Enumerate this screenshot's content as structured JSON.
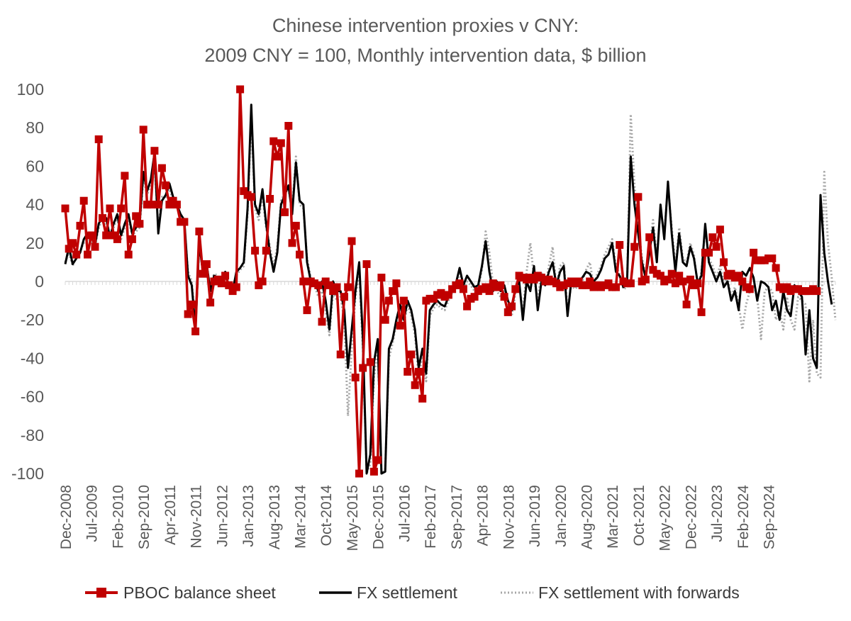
{
  "chart_data": {
    "type": "line",
    "title": "Chinese intervention proxies v CNY:",
    "subtitle": "2009 CNY = 100, Monthly intervention data, $ billion",
    "xlabel": "",
    "ylabel": "",
    "ylim": [
      -100,
      100
    ],
    "yticks": [
      100,
      80,
      60,
      40,
      20,
      0,
      -20,
      -40,
      -60,
      -80,
      -100
    ],
    "start_month": "2008-12",
    "x_tick_labels": [
      "Dec-2008",
      "Jul-2009",
      "Feb-2010",
      "Sep-2010",
      "Apr-2011",
      "Nov-2011",
      "Jun-2012",
      "Jan-2013",
      "Aug-2013",
      "Mar-2014",
      "Oct-2014",
      "May-2015",
      "Dec-2015",
      "Jul-2016",
      "Feb-2017",
      "Sep-2017",
      "Apr-2018",
      "Nov-2018",
      "Jun-2019",
      "Jan-2020",
      "Aug-2020",
      "Mar-2021",
      "Oct-2021",
      "May-2022",
      "Dec-2022",
      "Jul-2023",
      "Feb-2024",
      "Sep-2024"
    ],
    "legend": [
      "PBOC balance sheet",
      "FX settlement",
      "FX settlement with forwards"
    ],
    "legend_position": "bottom",
    "colors": {
      "pboc": "#c00000",
      "fx": "#000000",
      "fxf": "#a6a6a6",
      "axis": "#d9d9d9"
    },
    "series": [
      {
        "name": "PBOC balance sheet",
        "values": [
          38,
          17,
          20,
          14,
          29,
          42,
          14,
          24,
          18,
          74,
          33,
          24,
          38,
          24,
          22,
          38,
          55,
          14,
          22,
          34,
          30,
          79,
          40,
          40,
          68,
          40,
          59,
          50,
          40,
          42,
          40,
          31,
          31,
          -17,
          -12,
          -26,
          26,
          4,
          9,
          -11,
          0,
          1,
          -1,
          3,
          -2,
          -5,
          -3,
          100,
          47,
          45,
          44,
          16,
          -2,
          0,
          16,
          43,
          73,
          65,
          72,
          36,
          81,
          20,
          29,
          14,
          0,
          -15,
          0,
          -1,
          -2,
          -21,
          0,
          -2,
          -5,
          -3,
          -38,
          -8,
          -3,
          21,
          -50,
          -100,
          -45,
          9,
          -42,
          -99,
          -93,
          2,
          -20,
          -10,
          -5,
          -1,
          -23,
          -10,
          -47,
          -38,
          -54,
          -47,
          -61,
          -10,
          -9,
          -9,
          -7,
          -6,
          -8,
          -7,
          -4,
          -2,
          -1,
          -4,
          -13,
          -9,
          -8,
          -5,
          -4,
          -3,
          -5,
          -1,
          -3,
          -2,
          -8,
          -16,
          -13,
          -4,
          3,
          2,
          1,
          2,
          1,
          3,
          2,
          0,
          1,
          0,
          -1,
          -3,
          -2,
          -1,
          0,
          -1,
          0,
          -2,
          -2,
          0,
          -3,
          -2,
          -3,
          -2,
          -1,
          -3,
          -3,
          19,
          0,
          -1,
          -1,
          18,
          44,
          0,
          1,
          23,
          6,
          4,
          3,
          0,
          1,
          4,
          -1,
          3,
          0,
          -12,
          1,
          -2,
          -1,
          -16,
          15,
          15,
          23,
          18,
          27,
          10,
          3,
          4,
          2,
          3,
          0,
          -3,
          -4,
          15,
          11,
          11,
          11,
          12,
          12,
          7,
          -3,
          -4,
          -3,
          -5,
          -4,
          -4,
          -5,
          -5,
          -5,
          -4,
          -5
        ]
      },
      {
        "name": "FX settlement",
        "values": [
          9,
          18,
          9,
          12,
          15,
          22,
          25,
          23,
          19,
          30,
          34,
          33,
          23,
          30,
          35,
          24,
          30,
          35,
          25,
          28,
          30,
          57,
          47,
          53,
          67,
          25,
          42,
          45,
          51,
          44,
          40,
          35,
          32,
          3,
          -2,
          -25,
          20,
          5,
          9,
          -5,
          3,
          2,
          0,
          5,
          -3,
          -5,
          5,
          7,
          10,
          38,
          92,
          40,
          35,
          48,
          30,
          15,
          5,
          15,
          40,
          45,
          50,
          35,
          62,
          42,
          40,
          10,
          0,
          0,
          -5,
          0,
          -10,
          -25,
          0,
          -5,
          -5,
          -15,
          -45,
          -25,
          -5,
          10,
          -30,
          -100,
          -90,
          -42,
          -30,
          -100,
          -99,
          -35,
          -30,
          -20,
          -12,
          -20,
          -10,
          -15,
          -25,
          -45,
          -35,
          -48,
          -15,
          -12,
          -10,
          -12,
          -13,
          -8,
          -4,
          -1,
          7,
          -2,
          3,
          0,
          -3,
          -2,
          8,
          21,
          5,
          -5,
          0,
          -5,
          -2,
          -10,
          -15,
          -3,
          0,
          -20,
          0,
          -5,
          8,
          -15,
          0,
          -2,
          5,
          10,
          -2,
          5,
          8,
          -18,
          0,
          -2,
          0,
          2,
          5,
          4,
          0,
          2,
          6,
          12,
          14,
          20,
          5,
          3,
          -3,
          -1,
          65,
          40,
          25,
          10,
          2,
          15,
          28,
          10,
          40,
          22,
          52,
          25,
          5,
          25,
          10,
          8,
          18,
          12,
          -1,
          3,
          30,
          10,
          5,
          0,
          5,
          -3,
          0,
          -10,
          -5,
          -15,
          5,
          3,
          7,
          2,
          -10,
          0,
          -1,
          -3,
          -15,
          -10,
          -20,
          -5,
          -15,
          -18,
          -2,
          -5,
          -8,
          -38,
          -15,
          -40,
          -45,
          45,
          15,
          0,
          -12
        ]
      },
      {
        "name": "FX settlement with forwards",
        "values": [
          10,
          15,
          8,
          14,
          16,
          20,
          22,
          21,
          18,
          28,
          32,
          30,
          22,
          28,
          33,
          22,
          28,
          33,
          24,
          26,
          28,
          54,
          45,
          50,
          62,
          28,
          44,
          44,
          48,
          42,
          40,
          34,
          30,
          5,
          0,
          -22,
          18,
          6,
          8,
          -3,
          4,
          3,
          -1,
          4,
          -2,
          -4,
          3,
          6,
          8,
          35,
          85,
          38,
          32,
          45,
          28,
          18,
          8,
          18,
          42,
          46,
          48,
          38,
          65,
          40,
          38,
          12,
          2,
          -2,
          -8,
          -5,
          -15,
          -28,
          -5,
          -10,
          -8,
          -20,
          -70,
          -35,
          -8,
          5,
          -35,
          -100,
          -95,
          -50,
          -35,
          -100,
          -98,
          -40,
          -32,
          -22,
          -14,
          -22,
          -12,
          -18,
          -28,
          -50,
          -38,
          -52,
          -18,
          -14,
          -12,
          -14,
          -15,
          -10,
          -6,
          -3,
          5,
          -4,
          0,
          -2,
          -5,
          -4,
          6,
          26,
          15,
          -2,
          -5,
          -8,
          -5,
          -12,
          -18,
          -6,
          -2,
          -15,
          5,
          20,
          2,
          -10,
          5,
          -2,
          8,
          18,
          -3,
          8,
          10,
          -15,
          -2,
          -4,
          -2,
          0,
          6,
          10,
          -2,
          4,
          8,
          14,
          18,
          22,
          8,
          4,
          -4,
          -3,
          87,
          50,
          30,
          12,
          4,
          18,
          32,
          12,
          38,
          25,
          50,
          28,
          8,
          28,
          12,
          10,
          20,
          14,
          -3,
          5,
          28,
          12,
          8,
          2,
          8,
          -1,
          2,
          -8,
          -3,
          -12,
          -25,
          -12,
          -5,
          -2,
          -8,
          -30,
          -5,
          -3,
          -5,
          -20,
          -15,
          -25,
          -8,
          -20,
          -25,
          -8,
          -10,
          -12,
          -52,
          -20,
          -48,
          -50,
          57,
          20,
          2,
          -20
        ]
      }
    ]
  }
}
